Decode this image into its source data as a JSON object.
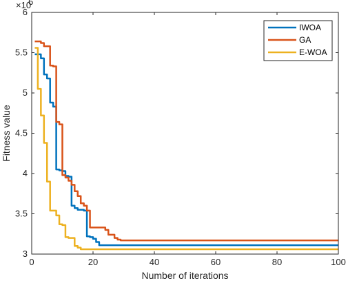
{
  "chart_data": {
    "type": "line",
    "xlabel": "Number of iterations",
    "ylabel": "Fitness value",
    "y_exponent_label": "×10",
    "y_exponent_power": "6",
    "xlim": [
      0,
      100
    ],
    "ylim": [
      3,
      6
    ],
    "x_ticks": [
      0,
      20,
      40,
      60,
      80,
      100
    ],
    "y_ticks": [
      3,
      3.5,
      4,
      4.5,
      5,
      5.5,
      6
    ],
    "x_tick_labels": [
      "0",
      "20",
      "40",
      "60",
      "80",
      "100"
    ],
    "y_tick_labels": [
      "3",
      "3.5",
      "4",
      "4.5",
      "5",
      "5.5",
      "6"
    ],
    "grid": false,
    "legend_position": "top-right",
    "series": [
      {
        "name": "IWOA",
        "color": "#0072BD",
        "points": [
          [
            1,
            5.48
          ],
          [
            2,
            5.48
          ],
          [
            3,
            5.43
          ],
          [
            4,
            5.23
          ],
          [
            5,
            5.18
          ],
          [
            6,
            4.88
          ],
          [
            7,
            4.83
          ],
          [
            8,
            4.05
          ],
          [
            9,
            4.04
          ],
          [
            10,
            4.03
          ],
          [
            11,
            3.97
          ],
          [
            12,
            3.96
          ],
          [
            13,
            3.6
          ],
          [
            14,
            3.57
          ],
          [
            15,
            3.55
          ],
          [
            16,
            3.55
          ],
          [
            17,
            3.54
          ],
          [
            18,
            3.22
          ],
          [
            19,
            3.21
          ],
          [
            20,
            3.19
          ],
          [
            21,
            3.15
          ],
          [
            22,
            3.11
          ],
          [
            30,
            3.11
          ],
          [
            40,
            3.11
          ],
          [
            60,
            3.11
          ],
          [
            80,
            3.11
          ],
          [
            100,
            3.11
          ]
        ]
      },
      {
        "name": "GA",
        "color": "#D95319",
        "points": [
          [
            1,
            5.64
          ],
          [
            2,
            5.64
          ],
          [
            3,
            5.62
          ],
          [
            4,
            5.58
          ],
          [
            5,
            5.58
          ],
          [
            6,
            5.34
          ],
          [
            7,
            5.33
          ],
          [
            8,
            4.64
          ],
          [
            9,
            4.61
          ],
          [
            10,
            3.98
          ],
          [
            11,
            3.95
          ],
          [
            12,
            3.91
          ],
          [
            13,
            3.86
          ],
          [
            14,
            3.78
          ],
          [
            15,
            3.72
          ],
          [
            16,
            3.63
          ],
          [
            17,
            3.6
          ],
          [
            18,
            3.54
          ],
          [
            19,
            3.33
          ],
          [
            20,
            3.33
          ],
          [
            22,
            3.33
          ],
          [
            23,
            3.33
          ],
          [
            24,
            3.3
          ],
          [
            25,
            3.24
          ],
          [
            26,
            3.24
          ],
          [
            27,
            3.2
          ],
          [
            28,
            3.18
          ],
          [
            29,
            3.17
          ],
          [
            40,
            3.17
          ],
          [
            60,
            3.17
          ],
          [
            80,
            3.17
          ],
          [
            100,
            3.17
          ]
        ]
      },
      {
        "name": "E-WOA",
        "color": "#EDB120",
        "points": [
          [
            1,
            5.56
          ],
          [
            2,
            5.05
          ],
          [
            3,
            4.72
          ],
          [
            4,
            4.38
          ],
          [
            5,
            3.9
          ],
          [
            6,
            3.54
          ],
          [
            7,
            3.54
          ],
          [
            8,
            3.48
          ],
          [
            9,
            3.37
          ],
          [
            10,
            3.36
          ],
          [
            11,
            3.21
          ],
          [
            12,
            3.2
          ],
          [
            13,
            3.2
          ],
          [
            14,
            3.1
          ],
          [
            15,
            3.08
          ],
          [
            16,
            3.06
          ],
          [
            17,
            3.06
          ],
          [
            18,
            3.06
          ],
          [
            25,
            3.06
          ],
          [
            40,
            3.06
          ],
          [
            60,
            3.06
          ],
          [
            80,
            3.06
          ],
          [
            100,
            3.06
          ]
        ]
      }
    ]
  }
}
